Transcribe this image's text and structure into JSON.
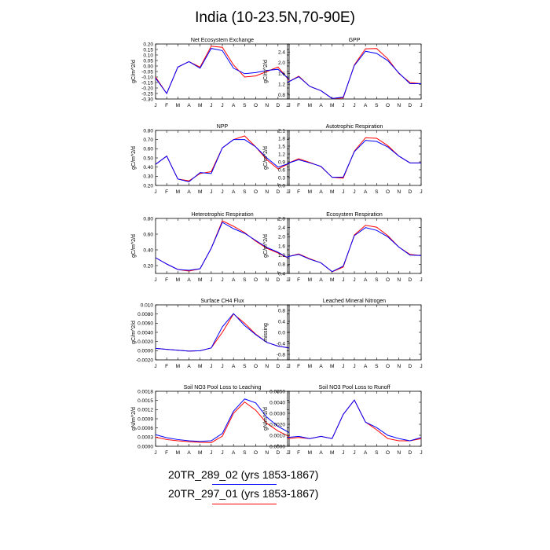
{
  "title": "India (10-23.5N,70-90E)",
  "months": [
    "J",
    "F",
    "M",
    "A",
    "M",
    "J",
    "J",
    "A",
    "S",
    "O",
    "N",
    "D",
    "J"
  ],
  "legend": [
    {
      "label": "20TR_289_02 (yrs 1853-1867)",
      "color": "#0000ff"
    },
    {
      "label": "20TR_297_01 (yrs 1853-1867)",
      "color": "#ff0000"
    }
  ],
  "chart_data": [
    {
      "type": "line",
      "title": "Net Ecosystem Exchange",
      "ylabel": "gC/m^2/d",
      "ylim": [
        -0.3,
        0.2
      ],
      "yticks": [
        "0.20",
        "0.15",
        "0.10",
        "0.05",
        "0.00",
        "-0.05",
        "-0.10",
        "-0.15",
        "-0.20",
        "-0.25",
        "-0.30"
      ],
      "ytick_values": [
        0.2,
        0.15,
        0.1,
        0.05,
        0.0,
        -0.05,
        -0.1,
        -0.15,
        -0.2,
        -0.25,
        -0.3
      ],
      "series": [
        {
          "color": "#0000ff",
          "values": [
            -0.11,
            -0.25,
            -0.01,
            0.04,
            -0.02,
            0.16,
            0.14,
            -0.02,
            -0.07,
            -0.06,
            -0.04,
            -0.03,
            -0.12
          ]
        },
        {
          "color": "#ff0000",
          "values": [
            -0.1,
            -0.25,
            -0.01,
            0.04,
            -0.01,
            0.18,
            0.17,
            0.01,
            -0.1,
            -0.09,
            -0.05,
            -0.01,
            -0.13
          ]
        }
      ]
    },
    {
      "type": "line",
      "title": "GPP",
      "ylabel": "gC/m^2/d",
      "ylim": [
        0.65,
        2.7
      ],
      "yticks": [
        "2.4",
        "2.0",
        "1.6",
        "1.2",
        "0.8"
      ],
      "ytick_values": [
        2.4,
        2.0,
        1.6,
        1.2,
        0.8
      ],
      "series": [
        {
          "color": "#0000ff",
          "values": [
            1.27,
            1.48,
            1.12,
            0.96,
            0.67,
            0.72,
            1.9,
            2.43,
            2.35,
            2.08,
            1.62,
            1.22,
            1.22
          ]
        },
        {
          "color": "#ff0000",
          "values": [
            1.27,
            1.5,
            1.12,
            0.96,
            0.67,
            0.69,
            1.92,
            2.52,
            2.53,
            2.15,
            1.6,
            1.26,
            1.22
          ]
        }
      ]
    },
    {
      "type": "line",
      "title": "NPP",
      "ylabel": "gC/m^2/d",
      "ylim": [
        0.2,
        0.8
      ],
      "yticks": [
        "0.80",
        "0.70",
        "0.60",
        "0.50",
        "0.40",
        "0.30",
        "0.20"
      ],
      "ytick_values": [
        0.8,
        0.7,
        0.6,
        0.5,
        0.4,
        0.3,
        0.2
      ],
      "series": [
        {
          "color": "#0000ff",
          "values": [
            0.43,
            0.52,
            0.27,
            0.24,
            0.34,
            0.33,
            0.61,
            0.7,
            0.7,
            0.62,
            0.5,
            0.4,
            0.44
          ]
        },
        {
          "color": "#ff0000",
          "values": [
            0.43,
            0.52,
            0.27,
            0.25,
            0.33,
            0.35,
            0.61,
            0.7,
            0.74,
            0.62,
            0.48,
            0.38,
            0.44
          ]
        }
      ]
    },
    {
      "type": "line",
      "title": "Autotrophic Respiration",
      "ylabel": "gC/m^2/d",
      "ylim": [
        0.0,
        2.1
      ],
      "yticks": [
        "2.1",
        "1.8",
        "1.5",
        "1.2",
        "0.9",
        "0.6",
        "0.3",
        "0.0"
      ],
      "ytick_values": [
        2.1,
        1.8,
        1.5,
        1.2,
        0.9,
        0.6,
        0.3,
        0.0
      ],
      "series": [
        {
          "color": "#0000ff",
          "values": [
            0.84,
            0.98,
            0.86,
            0.73,
            0.31,
            0.32,
            1.29,
            1.72,
            1.68,
            1.47,
            1.12,
            0.86,
            0.86
          ]
        },
        {
          "color": "#ff0000",
          "values": [
            0.84,
            1.02,
            0.88,
            0.72,
            0.31,
            0.28,
            1.31,
            1.82,
            1.8,
            1.52,
            1.12,
            0.86,
            0.86
          ]
        }
      ]
    },
    {
      "type": "line",
      "title": "Heterotrophic Respiration",
      "ylabel": "gC/m^2/d",
      "ylim": [
        0.1,
        0.8
      ],
      "yticks": [
        "0.80",
        "0.60",
        "0.40",
        "0.20"
      ],
      "ytick_values": [
        0.8,
        0.6,
        0.4,
        0.2
      ],
      "series": [
        {
          "color": "#0000ff",
          "values": [
            0.3,
            0.22,
            0.15,
            0.14,
            0.16,
            0.42,
            0.75,
            0.67,
            0.61,
            0.52,
            0.43,
            0.37,
            0.29
          ]
        },
        {
          "color": "#ff0000",
          "values": [
            0.3,
            0.22,
            0.15,
            0.13,
            0.16,
            0.42,
            0.77,
            0.7,
            0.62,
            0.51,
            0.42,
            0.36,
            0.29
          ]
        }
      ]
    },
    {
      "type": "line",
      "title": "Ecosystem Respiration",
      "ylabel": "gC/m^2/d",
      "ylim": [
        0.4,
        2.8
      ],
      "yticks": [
        "2.8",
        "2.4",
        "2.0",
        "1.6",
        "1.2",
        "0.8",
        "0.4"
      ],
      "ytick_values": [
        2.8,
        2.4,
        2.0,
        1.6,
        1.2,
        0.8,
        0.4
      ],
      "series": [
        {
          "color": "#0000ff",
          "values": [
            1.13,
            1.23,
            1.02,
            0.86,
            0.48,
            0.72,
            2.05,
            2.4,
            2.28,
            2.0,
            1.55,
            1.2,
            1.18
          ]
        },
        {
          "color": "#ff0000",
          "values": [
            1.13,
            1.25,
            1.04,
            0.86,
            0.47,
            0.68,
            2.08,
            2.5,
            2.42,
            2.05,
            1.55,
            1.23,
            1.18
          ]
        }
      ]
    },
    {
      "type": "line",
      "title": "Surface CH4 Flux",
      "ylabel": "gC/m^2/d",
      "ylim": [
        -0.002,
        0.01
      ],
      "yticks": [
        "0.010",
        "0.0080",
        "0.0060",
        "0.0040",
        "0.0020",
        "0.0000",
        "-0.0020"
      ],
      "ytick_values": [
        0.01,
        0.008,
        0.006,
        0.004,
        0.002,
        0.0,
        -0.002
      ],
      "series": [
        {
          "color": "#0000ff",
          "values": [
            0.0005,
            0.0003,
            0.0001,
            -0.0001,
            0.0,
            0.0006,
            0.0052,
            0.0081,
            0.0055,
            0.0035,
            0.0018,
            0.001,
            0.0006
          ]
        },
        {
          "color": "#ff0000",
          "values": [
            0.0005,
            0.0003,
            0.0001,
            -0.0001,
            0.0,
            0.0006,
            0.004,
            0.008,
            0.006,
            0.0036,
            0.0018,
            0.001,
            0.0006
          ]
        }
      ]
    },
    {
      "type": "line",
      "title": "Leached Mineral Nitrogen",
      "ylabel": "missing",
      "ylim": [
        -1.0,
        1.0
      ],
      "yticks": [
        "0.8",
        "0.4",
        "0.0",
        "-0.4",
        "-0.8"
      ],
      "ytick_values": [
        0.8,
        0.4,
        0.0,
        -0.4,
        -0.8
      ],
      "series": []
    },
    {
      "type": "line",
      "title": "Soil NO3 Pool Loss to Leaching",
      "ylabel": "gN/m^2/d",
      "ylim": [
        0.0,
        0.0018
      ],
      "yticks": [
        "0.0018",
        "0.0015",
        "0.0012",
        "0.0009",
        "0.0006",
        "0.0003",
        "0.0000"
      ],
      "ytick_values": [
        0.0018,
        0.0015,
        0.0012,
        0.0009,
        0.0006,
        0.0003,
        0.0
      ],
      "series": [
        {
          "color": "#0000ff",
          "values": [
            0.00038,
            0.00028,
            0.00022,
            0.00018,
            0.00016,
            0.00018,
            0.00042,
            0.00115,
            0.00155,
            0.00142,
            0.00095,
            0.00065,
            0.00045
          ]
        },
        {
          "color": "#ff0000",
          "values": [
            0.0003,
            0.00022,
            0.00018,
            0.00015,
            0.00013,
            0.00012,
            0.00033,
            0.00108,
            0.00145,
            0.00118,
            0.00075,
            0.0005,
            0.00032
          ]
        }
      ]
    },
    {
      "type": "line",
      "title": "Soil NO3 Pool Loss to Runoff",
      "ylabel": "gN/m^2/d",
      "ylim": [
        0.0,
        0.005
      ],
      "yticks": [
        "0.0050",
        "0.0040",
        "0.0030",
        "0.0020",
        "0.0010",
        "0.0000"
      ],
      "ytick_values": [
        0.005,
        0.004,
        0.003,
        0.002,
        0.001,
        0.0
      ],
      "series": [
        {
          "color": "#0000ff",
          "values": [
            0.0008,
            0.0009,
            0.0007,
            0.0009,
            0.0007,
            0.0029,
            0.0042,
            0.0022,
            0.0017,
            0.001,
            0.0007,
            0.0005,
            0.0008
          ]
        },
        {
          "color": "#ff0000",
          "values": [
            0.0007,
            0.0008,
            0.0007,
            0.0009,
            0.0007,
            0.0029,
            0.0042,
            0.0022,
            0.0015,
            0.0007,
            0.0005,
            0.0005,
            0.0007
          ]
        }
      ]
    }
  ]
}
